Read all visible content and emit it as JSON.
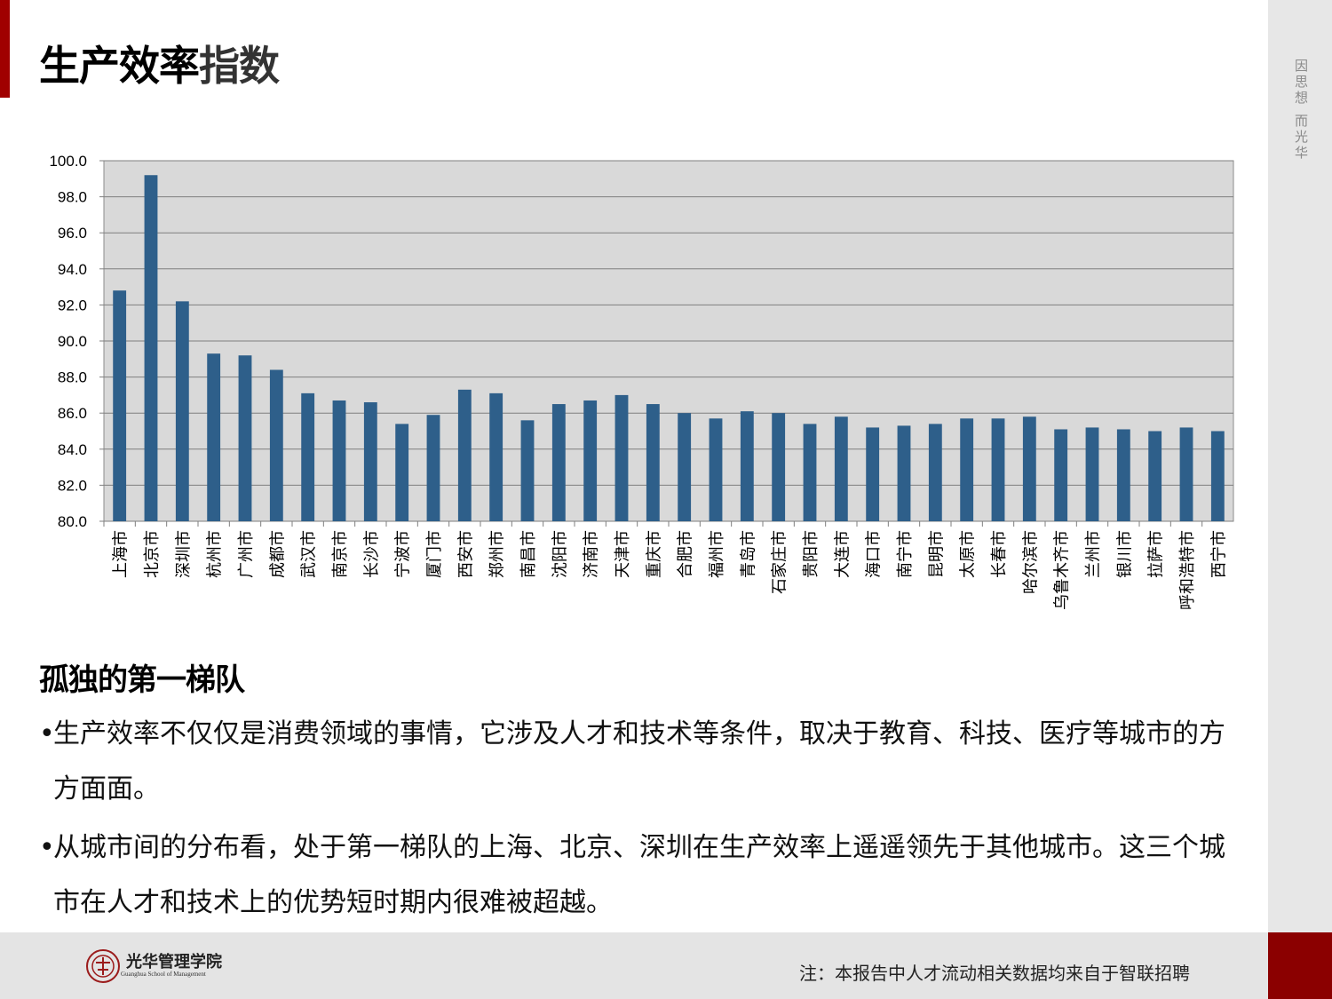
{
  "slide": {
    "title_dark": "生产效率",
    "title_light": "指数",
    "side_motto": "因思想 而光华",
    "subtitle": "孤独的第一梯队",
    "bullets": [
      "生产效率不仅仅是消费领域的事情，它涉及人才和技术等条件，取决于教育、科技、医疗等城市的方方面面。",
      "从城市间的分布看，处于第一梯队的上海、北京、深圳在生产效率上遥遥领先于其他城市。这三个城市在人才和技术上的优势短时期内很难被超越。"
    ],
    "bullet_marker": "•",
    "footer_note": "注：本报告中人才流动相关数据均来自于智联招聘",
    "logo_name": "光华管理学院",
    "logo_sub": "Guanghua School of Management"
  },
  "colors": {
    "accent": "#a00000",
    "bar": "#2e5f8a",
    "plot_bg": "#d9d9d9"
  },
  "chart_data": {
    "type": "bar",
    "title": "",
    "xlabel": "",
    "ylabel": "",
    "ylim": [
      80,
      100
    ],
    "yticks": [
      "80.0",
      "82.0",
      "84.0",
      "86.0",
      "88.0",
      "90.0",
      "92.0",
      "94.0",
      "96.0",
      "98.0",
      "100.0"
    ],
    "grid": true,
    "legend": "none",
    "categories": [
      "上海市",
      "北京市",
      "深圳市",
      "杭州市",
      "广州市",
      "成都市",
      "武汉市",
      "南京市",
      "长沙市",
      "宁波市",
      "厦门市",
      "西安市",
      "郑州市",
      "南昌市",
      "沈阳市",
      "济南市",
      "天津市",
      "重庆市",
      "合肥市",
      "福州市",
      "青岛市",
      "石家庄市",
      "贵阳市",
      "大连市",
      "海口市",
      "南宁市",
      "昆明市",
      "太原市",
      "长春市",
      "哈尔滨市",
      "乌鲁木齐市",
      "兰州市",
      "银川市",
      "拉萨市",
      "呼和浩特市",
      "西宁市"
    ],
    "values": [
      92.8,
      99.2,
      92.2,
      89.3,
      89.2,
      88.4,
      87.1,
      86.7,
      86.6,
      85.4,
      85.9,
      87.3,
      87.1,
      85.6,
      86.5,
      86.7,
      87.0,
      86.5,
      86.0,
      85.7,
      86.1,
      86.0,
      85.4,
      85.8,
      85.2,
      85.3,
      85.4,
      85.7,
      85.7,
      85.8,
      85.1,
      85.2,
      85.1,
      85.0,
      85.2,
      85.0
    ]
  }
}
